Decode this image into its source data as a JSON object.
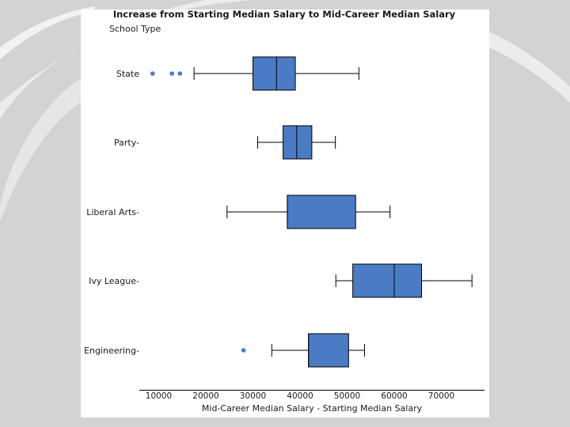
{
  "chart_data": {
    "type": "boxplot",
    "orientation": "horizontal",
    "title": "Increase from Starting Median Salary to Mid-Career Median Salary",
    "xlabel": "Mid-Career Median Salary - Starting Median Salary",
    "ylabel": "School Type",
    "xlim": [
      5000,
      80000
    ],
    "xticks": [
      10000,
      20000,
      30000,
      40000,
      50000,
      60000,
      70000
    ],
    "xtick_labels": [
      "10000",
      "20000",
      "30000",
      "40000",
      "50000",
      "60000",
      "70000"
    ],
    "box_color": "#4a7bc4",
    "categories": [
      "State",
      "Party",
      "Liberal Arts",
      "Ivy League",
      "Engineering"
    ],
    "boxes": [
      {
        "category": "State",
        "whisker_low": 17500,
        "q1": 30000,
        "median": 35000,
        "q3": 39000,
        "whisker_high": 52500,
        "outliers": [
          8700,
          12800,
          14500
        ]
      },
      {
        "category": "Party",
        "whisker_low": 31000,
        "q1": 36400,
        "median": 39300,
        "q3": 42500,
        "whisker_high": 47500,
        "outliers": []
      },
      {
        "category": "Liberal Arts",
        "whisker_low": 24500,
        "q1": 37300,
        "median": 37300,
        "q3": 51800,
        "whisker_high": 59100,
        "outliers": []
      },
      {
        "category": "Ivy League",
        "whisker_low": 47600,
        "q1": 51200,
        "median": 60000,
        "q3": 65800,
        "whisker_high": 76500,
        "outliers": []
      },
      {
        "category": "Engineering",
        "whisker_low": 34000,
        "q1": 41800,
        "median": 41800,
        "q3": 50300,
        "whisker_high": 53700,
        "outliers": [
          28000
        ]
      }
    ]
  }
}
